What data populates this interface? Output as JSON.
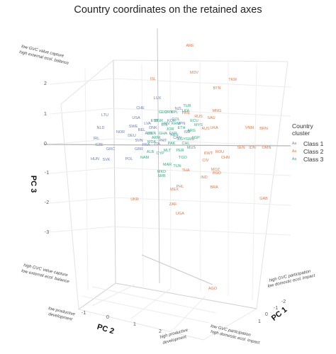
{
  "chart_data": {
    "type": "scatter",
    "title": "Country coordinates on the retained axes",
    "axes": {
      "x": {
        "label": "PC 1",
        "ticks": [
          -2,
          -1,
          0,
          1
        ],
        "low_end": [
          "low GVC participation",
          "high domestic ecol. impact"
        ],
        "high_end": [
          "high GVC participation",
          "low domestic ecol. impact"
        ]
      },
      "y": {
        "label": "PC 2",
        "ticks": [
          -1,
          0,
          1,
          2
        ],
        "low_end": [
          "low productive",
          "development"
        ],
        "high_end": [
          "high productive",
          "development"
        ]
      },
      "z": {
        "label": "PC 3",
        "ticks": [
          2,
          1,
          0,
          -1,
          -2,
          -3
        ],
        "high_end": [
          "low GVC value capture",
          "high external ecol. balance"
        ],
        "low_end": [
          "high GVC value capture",
          "low external ecol. balance"
        ]
      }
    },
    "legend": {
      "title": [
        "Country",
        "cluster"
      ],
      "swatch_text": "Aa",
      "entries": [
        "Class 1",
        "Class 2",
        "Class 3"
      ],
      "placement": "right"
    },
    "colors": {
      "Class 1": "#6c7fb4",
      "Class 2": "#e07a4a",
      "Class 3": "#3aaa82"
    },
    "series": [
      {
        "name": "Class 1",
        "points": [
          {
            "label": "LTU"
          },
          {
            "label": "NLD"
          },
          {
            "label": "IRL"
          },
          {
            "label": "HUN"
          },
          {
            "label": "SVK"
          },
          {
            "label": "CZE"
          },
          {
            "label": "POL"
          },
          {
            "label": "USA"
          },
          {
            "label": "CHE"
          },
          {
            "label": "LUX"
          },
          {
            "label": "NZL"
          },
          {
            "label": "SWE"
          },
          {
            "label": "BEL"
          },
          {
            "label": "AUT"
          },
          {
            "label": "DEU"
          },
          {
            "label": "DNK"
          },
          {
            "label": "FIN"
          },
          {
            "label": "FRA"
          },
          {
            "label": "GBR"
          },
          {
            "label": "ITA"
          },
          {
            "label": "ESP"
          },
          {
            "label": "PRT"
          },
          {
            "label": "SVN"
          },
          {
            "label": "EST"
          },
          {
            "label": "LVA"
          },
          {
            "label": "KOR"
          },
          {
            "label": "JPN"
          },
          {
            "label": "CAN"
          },
          {
            "label": "ISR"
          },
          {
            "label": "NOR"
          },
          {
            "label": "GRC"
          }
        ]
      },
      {
        "name": "Class 2",
        "points": [
          {
            "label": "ARE"
          },
          {
            "label": "MDV"
          },
          {
            "label": "ISL"
          },
          {
            "label": "TKM"
          },
          {
            "label": "BTN"
          },
          {
            "label": "VNM"
          },
          {
            "label": "BRN"
          },
          {
            "label": "IDN"
          },
          {
            "label": "OMN"
          },
          {
            "label": "SEN"
          },
          {
            "label": "ROU"
          },
          {
            "label": "CHN"
          },
          {
            "label": "UKA"
          },
          {
            "label": "MOZ"
          },
          {
            "label": "BGD"
          },
          {
            "label": "GAB"
          },
          {
            "label": "BRA"
          },
          {
            "label": "IND"
          },
          {
            "label": "CIV"
          },
          {
            "label": "THA"
          },
          {
            "label": "MEX"
          },
          {
            "label": "PHL"
          },
          {
            "label": "UKR"
          },
          {
            "label": "ZAF"
          },
          {
            "label": "UGA"
          },
          {
            "label": "AGO"
          },
          {
            "label": "KWT"
          },
          {
            "label": "AUS"
          },
          {
            "label": "RUS"
          },
          {
            "label": "PAN"
          },
          {
            "label": "MNG"
          },
          {
            "label": "SAU"
          }
        ]
      },
      {
        "name": "Class 3",
        "points": [
          {
            "label": "TUR"
          },
          {
            "label": "TGO"
          },
          {
            "label": "GMB"
          },
          {
            "label": "MUS"
          },
          {
            "label": "MAR"
          },
          {
            "label": "TUN"
          },
          {
            "label": "MKD"
          },
          {
            "label": "SRB"
          },
          {
            "label": "BGR"
          },
          {
            "label": "HRV"
          },
          {
            "label": "JOR"
          },
          {
            "label": "KEN"
          },
          {
            "label": "MLT"
          },
          {
            "label": "CYP"
          },
          {
            "label": "PER"
          },
          {
            "label": "CHL"
          },
          {
            "label": "COL"
          },
          {
            "label": "ECU"
          },
          {
            "label": "URY"
          },
          {
            "label": "ARG"
          },
          {
            "label": "ETH"
          },
          {
            "label": "GHA"
          },
          {
            "label": "LKA"
          },
          {
            "label": "KHM"
          },
          {
            "label": "MYS"
          },
          {
            "label": "SGP"
          },
          {
            "label": "PAK"
          },
          {
            "label": "EGY"
          },
          {
            "label": "NPL"
          },
          {
            "label": "MDA"
          },
          {
            "label": "ALB"
          },
          {
            "label": "GEO"
          },
          {
            "label": "ARM"
          },
          {
            "label": "NAM"
          },
          {
            "label": "BWA"
          }
        ]
      }
    ]
  }
}
